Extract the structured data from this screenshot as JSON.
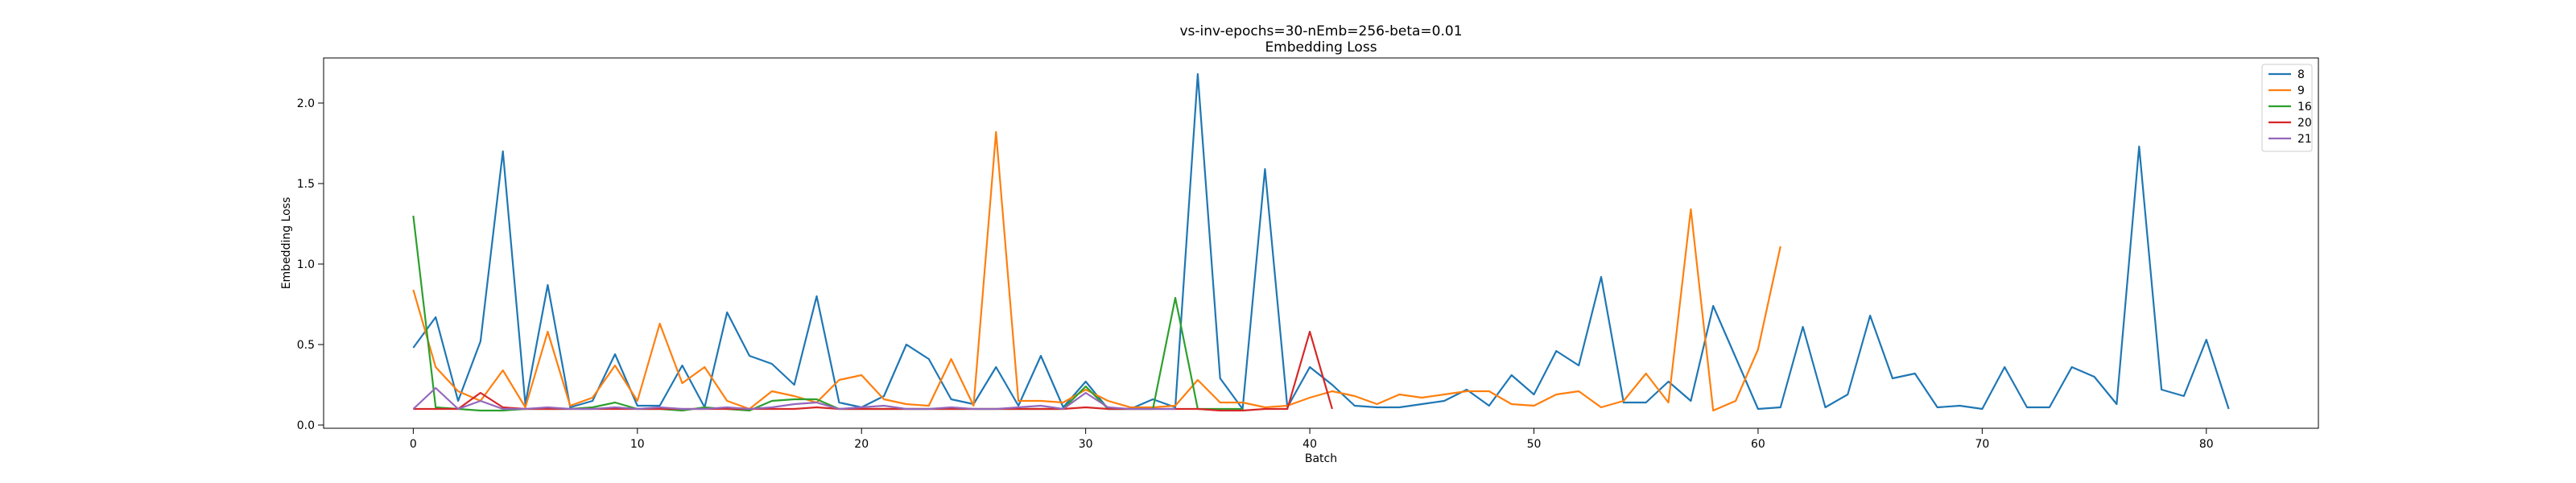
{
  "chart_data": {
    "type": "line",
    "title": "vs-inv-epochs=30-nEmb=256-beta=0.01",
    "subtitle": "Embedding Loss",
    "xlabel": "Batch",
    "ylabel": "Embedding Loss",
    "xlim": [
      -4,
      85
    ],
    "ylim": [
      -0.02,
      2.28
    ],
    "xticks": [
      0,
      10,
      20,
      30,
      40,
      50,
      60,
      70,
      80
    ],
    "yticks": [
      0.0,
      0.5,
      1.0,
      1.5,
      2.0
    ],
    "ytick_labels": [
      "0.0",
      "0.5",
      "1.0",
      "1.5",
      "2.0"
    ],
    "grid": false,
    "legend_position": "top-right",
    "series": [
      {
        "name": "8",
        "color": "#1f77b4",
        "values": [
          0.48,
          0.67,
          0.15,
          0.52,
          1.7,
          0.13,
          0.87,
          0.11,
          0.15,
          0.44,
          0.12,
          0.12,
          0.37,
          0.11,
          0.7,
          0.43,
          0.38,
          0.25,
          0.8,
          0.14,
          0.11,
          0.18,
          0.5,
          0.41,
          0.16,
          0.13,
          0.36,
          0.12,
          0.43,
          0.11,
          0.27,
          0.1,
          0.1,
          0.16,
          0.11,
          2.18,
          0.29,
          0.1,
          1.59,
          0.11,
          0.36,
          0.25,
          0.12,
          0.11,
          0.11,
          0.13,
          0.15,
          0.22,
          0.12,
          0.31,
          0.19,
          0.46,
          0.37,
          0.92,
          0.14,
          0.14,
          0.27,
          0.15,
          0.74,
          0.42,
          0.1,
          0.11,
          0.61,
          0.11,
          0.19,
          0.68,
          0.29,
          0.32,
          0.11,
          0.12,
          0.1,
          0.36,
          0.11,
          0.11,
          0.36,
          0.3,
          0.13,
          1.73,
          0.22,
          0.18,
          0.53,
          0.1
        ]
      },
      {
        "name": "9",
        "color": "#ff7f0e",
        "values": [
          0.84,
          0.36,
          0.21,
          0.15,
          0.34,
          0.11,
          0.58,
          0.12,
          0.17,
          0.37,
          0.15,
          0.63,
          0.26,
          0.36,
          0.15,
          0.1,
          0.21,
          0.18,
          0.14,
          0.28,
          0.31,
          0.16,
          0.13,
          0.12,
          0.41,
          0.12,
          1.82,
          0.15,
          0.15,
          0.14,
          0.22,
          0.15,
          0.11,
          0.11,
          0.12,
          0.28,
          0.14,
          0.14,
          0.11,
          0.12,
          0.17,
          0.21,
          0.18,
          0.13,
          0.19,
          0.17,
          0.19,
          0.21,
          0.21,
          0.13,
          0.12,
          0.19,
          0.21,
          0.11,
          0.15,
          0.32,
          0.14,
          1.34,
          0.09,
          0.15,
          0.47,
          1.11
        ]
      },
      {
        "name": "16",
        "color": "#2ca02c",
        "values": [
          1.3,
          0.11,
          0.1,
          0.09,
          0.09,
          0.1,
          0.1,
          0.1,
          0.11,
          0.14,
          0.1,
          0.1,
          0.09,
          0.11,
          0.1,
          0.09,
          0.15,
          0.16,
          0.16,
          0.1,
          0.1,
          0.1,
          0.1,
          0.1,
          0.1,
          0.1,
          0.1,
          0.1,
          0.1,
          0.1,
          0.24,
          0.1,
          0.1,
          0.1,
          0.79,
          0.1,
          0.1,
          0.1
        ]
      },
      {
        "name": "20",
        "color": "#d62728",
        "values": [
          0.1,
          0.1,
          0.1,
          0.2,
          0.11,
          0.1,
          0.1,
          0.1,
          0.1,
          0.1,
          0.1,
          0.1,
          0.1,
          0.1,
          0.1,
          0.1,
          0.1,
          0.1,
          0.11,
          0.1,
          0.1,
          0.1,
          0.1,
          0.1,
          0.1,
          0.1,
          0.1,
          0.1,
          0.1,
          0.1,
          0.11,
          0.1,
          0.1,
          0.1,
          0.1,
          0.1,
          0.09,
          0.09,
          0.1,
          0.1,
          0.58,
          0.1
        ]
      },
      {
        "name": "21",
        "color": "#9467bd",
        "values": [
          0.1,
          0.23,
          0.1,
          0.15,
          0.1,
          0.1,
          0.11,
          0.1,
          0.1,
          0.11,
          0.1,
          0.11,
          0.1,
          0.1,
          0.11,
          0.1,
          0.11,
          0.13,
          0.14,
          0.1,
          0.11,
          0.12,
          0.1,
          0.1,
          0.11,
          0.1,
          0.1,
          0.11,
          0.12,
          0.1,
          0.2,
          0.11,
          0.1,
          0.1,
          0.1
        ]
      }
    ]
  }
}
